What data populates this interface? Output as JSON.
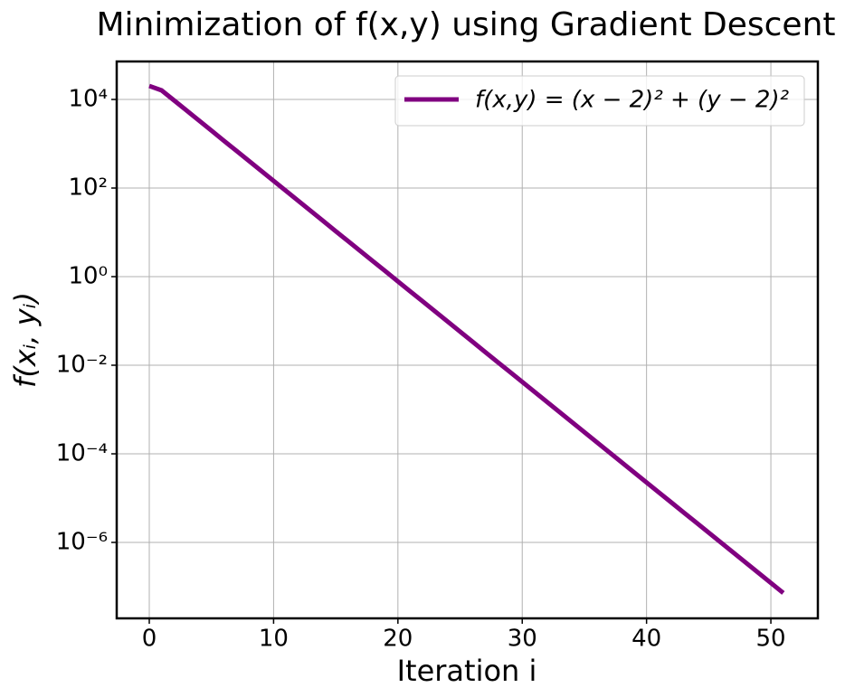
{
  "chart_data": {
    "type": "line",
    "title": "Minimization of f(x,y) using Gradient Descent",
    "x_label": "Iteration i",
    "y_label": "f(xᵢ, yᵢ)",
    "x": [
      0,
      1,
      2,
      3,
      4,
      5,
      6,
      7,
      8,
      9,
      10,
      11,
      12,
      13,
      14,
      15,
      16,
      17,
      18,
      19,
      20,
      21,
      22,
      23,
      24,
      25,
      26,
      27,
      28,
      29,
      30,
      31,
      32,
      33,
      34,
      35,
      36,
      37,
      38,
      39,
      40,
      41,
      42,
      43,
      44,
      45,
      46,
      47,
      48,
      49,
      50,
      51
    ],
    "series": [
      {
        "name": "f(x,y) = (x − 2)² + (y − 2)²",
        "color": "#800080",
        "values": [
          20200,
          16000,
          9490,
          5630,
          3340,
          1980,
          1170,
          696,
          413,
          245,
          145,
          86,
          51,
          30.3,
          17.9,
          10.6,
          6.3,
          3.74,
          2.22,
          1.32,
          0.781,
          0.463,
          0.275,
          0.163,
          0.0966,
          0.0573,
          0.034,
          0.0201,
          0.0119,
          0.00708,
          0.0042,
          0.00249,
          0.00148,
          0.000876,
          0.00052,
          0.000308,
          0.000183,
          0.000108,
          6.43e-05,
          3.81e-05,
          2.26e-05,
          1.34e-05,
          7.95e-06,
          4.71e-06,
          2.8e-06,
          1.66e-06,
          9.83e-07,
          5.83e-07,
          3.46e-07,
          2.05e-07,
          1.22e-07,
          7.21e-08
        ]
      }
    ],
    "xlim": [
      -2.62,
      53.78
    ],
    "xticks": [
      0,
      10,
      20,
      30,
      40,
      50
    ],
    "ylim": [
      1.93e-08,
      72000
    ],
    "y_scale": "log",
    "yticks": [
      {
        "value": 10000,
        "label": "10⁴"
      },
      {
        "value": 100,
        "label": "10²"
      },
      {
        "value": 1,
        "label": "10⁰"
      },
      {
        "value": 0.01,
        "label": "10⁻²"
      },
      {
        "value": 0.0001,
        "label": "10⁻⁴"
      },
      {
        "value": 1e-06,
        "label": "10⁻⁶"
      }
    ],
    "grid": true,
    "legend": "upper right"
  }
}
